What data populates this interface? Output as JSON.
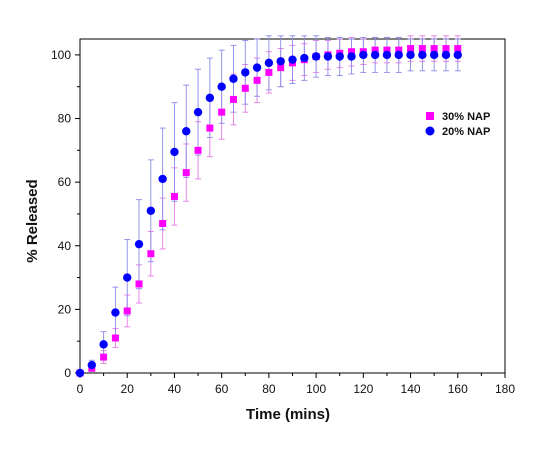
{
  "chart_data": {
    "type": "scatter",
    "xlabel": "Time (mins)",
    "ylabel": "% Released",
    "xlim": [
      0,
      180
    ],
    "ylim": [
      0,
      105
    ],
    "xticks": [
      0,
      20,
      40,
      60,
      80,
      100,
      120,
      140,
      160,
      180
    ],
    "yticks": [
      0,
      20,
      40,
      60,
      80,
      100
    ],
    "grid": false,
    "legend_position": "right",
    "x": [
      0,
      5,
      10,
      15,
      20,
      25,
      30,
      35,
      40,
      45,
      50,
      55,
      60,
      65,
      70,
      75,
      80,
      85,
      90,
      95,
      100,
      105,
      110,
      115,
      120,
      125,
      130,
      135,
      140,
      145,
      150,
      155,
      160
    ],
    "series": [
      {
        "name": "30% NAP",
        "color": "#ff00ff",
        "error_color": "#e77ae7",
        "marker": "square",
        "values": [
          0,
          1.5,
          5,
          11,
          19.5,
          28,
          37.5,
          47,
          55.5,
          63,
          70,
          77,
          82,
          86,
          89.5,
          92,
          94.5,
          96,
          97.5,
          98.5,
          99.5,
          100,
          100.5,
          101,
          101,
          101.5,
          101.5,
          101.5,
          102,
          102,
          102,
          102,
          102
        ],
        "errors": [
          0,
          1,
          2,
          3,
          5,
          6,
          7,
          8,
          9,
          9,
          9,
          9,
          8.5,
          8,
          7.5,
          7,
          6.5,
          6,
          5.5,
          5,
          5,
          4.5,
          4.5,
          4.5,
          4,
          4,
          4,
          4,
          4,
          4,
          4,
          4,
          4
        ]
      },
      {
        "name": "20% NAP",
        "color": "#0000ff",
        "error_color": "#8a8ae8",
        "marker": "circle",
        "values": [
          0,
          2.5,
          9,
          19,
          30,
          40.5,
          51,
          61,
          69.5,
          76,
          82,
          86.5,
          90,
          92.5,
          94.5,
          96,
          97.5,
          98,
          98.5,
          99,
          99.5,
          99.5,
          99.5,
          99.5,
          100,
          100,
          100,
          100,
          100,
          100,
          100,
          100,
          100
        ],
        "errors": [
          0,
          1.5,
          4,
          8,
          12,
          14,
          16,
          16,
          15.5,
          14.5,
          13.5,
          12.5,
          11.5,
          10.5,
          10,
          9,
          8.5,
          8,
          7.5,
          7,
          6.5,
          6,
          6,
          5.5,
          5.5,
          5.5,
          5.5,
          5.5,
          5,
          5,
          5,
          5,
          5
        ]
      }
    ]
  }
}
